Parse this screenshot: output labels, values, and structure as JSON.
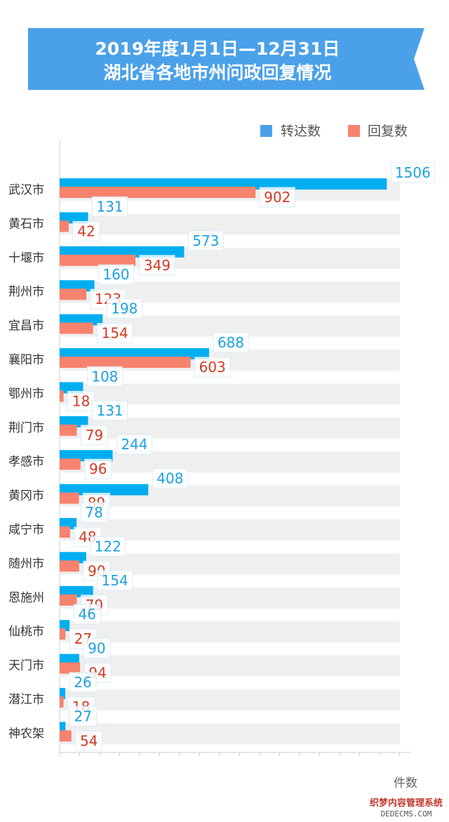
{
  "chart_data": {
    "type": "bar",
    "orientation": "horizontal",
    "title_lines": [
      "2019年度1月1日—12月31日",
      "湖北省各地市州问政回复情况"
    ],
    "categories": [
      "武汉市",
      "黄石市",
      "十堰市",
      "荆州市",
      "宜昌市",
      "襄阳市",
      "鄂州市",
      "荆门市",
      "孝感市",
      "黄冈市",
      "咸宁市",
      "随州市",
      "恩施州",
      "仙桃市",
      "天门市",
      "潜江市",
      "神农架"
    ],
    "series": [
      {
        "name": "转达数",
        "color": "#00aeef",
        "values": [
          1506,
          131,
          573,
          160,
          198,
          688,
          108,
          131,
          244,
          408,
          78,
          122,
          154,
          46,
          90,
          26,
          27
        ]
      },
      {
        "name": "回复数",
        "color": "#f7836f",
        "values": [
          902,
          42,
          349,
          123,
          154,
          603,
          18,
          79,
          96,
          89,
          48,
          90,
          79,
          27,
          94,
          18,
          54
        ]
      }
    ],
    "xlim": [
      0,
      1550
    ],
    "unit": "件数",
    "legend_position": "top-right",
    "background_track": true,
    "label_colors": {
      "转达数": "#1ba1e2",
      "回复数": "#d13b25"
    }
  },
  "colors": {
    "title_banner": "#4ba1e9",
    "track": "#efefef"
  },
  "watermark": {
    "line1": "织梦内容管理系统",
    "line2": "DEDECMS.COM"
  }
}
